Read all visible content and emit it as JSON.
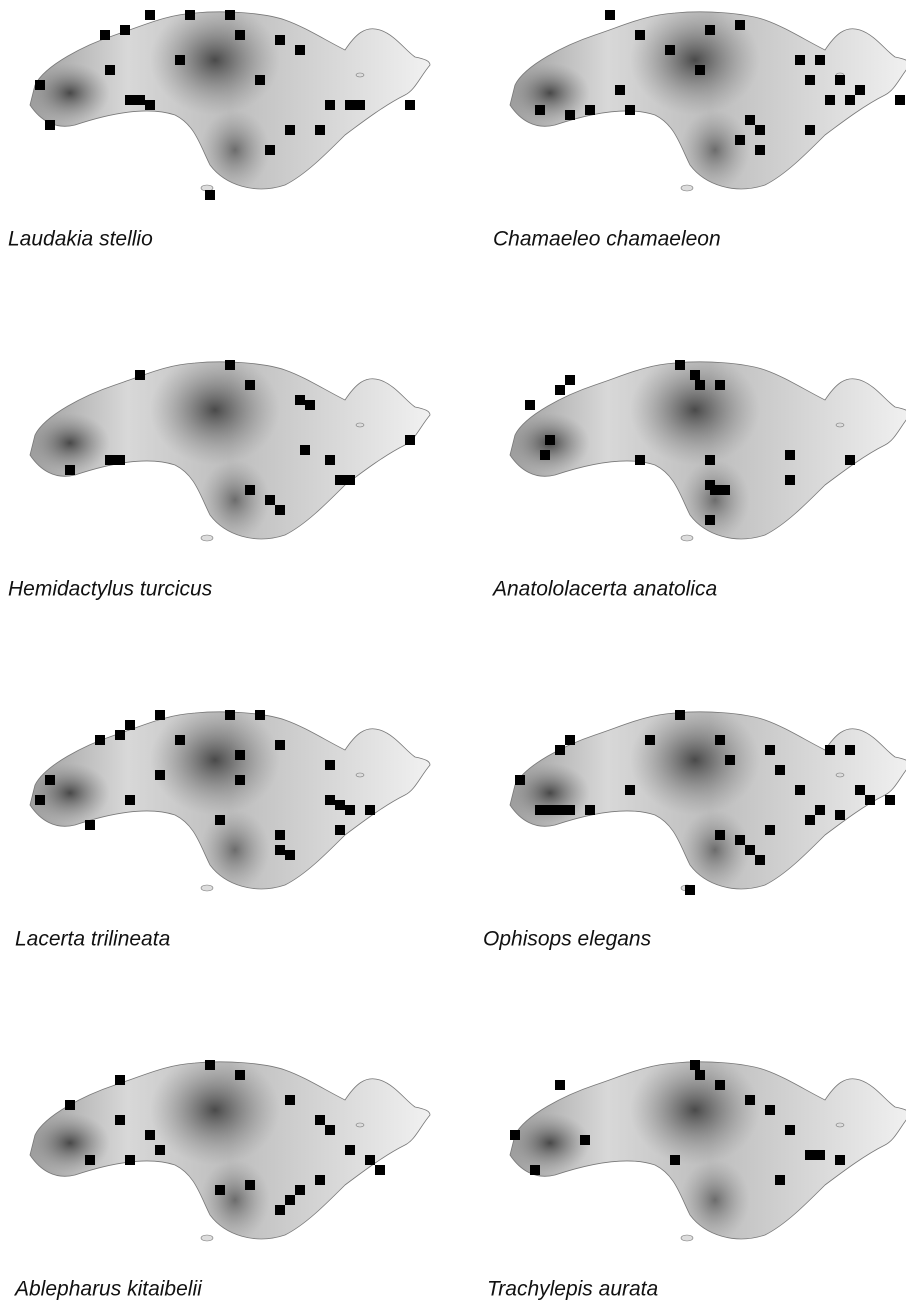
{
  "panels": [
    {
      "label": "Laudakia stellio"
    },
    {
      "label": "Chamaeleo chamaeleon"
    },
    {
      "label": "Hemidactylus turcicus"
    },
    {
      "label": "Anatololacerta anatolica"
    },
    {
      "label": "Lacerta trilineata"
    },
    {
      "label": "Ophisops elegans"
    },
    {
      "label": "Ablepharus kitaibelii"
    },
    {
      "label": "Trachylepis aurata"
    }
  ]
}
